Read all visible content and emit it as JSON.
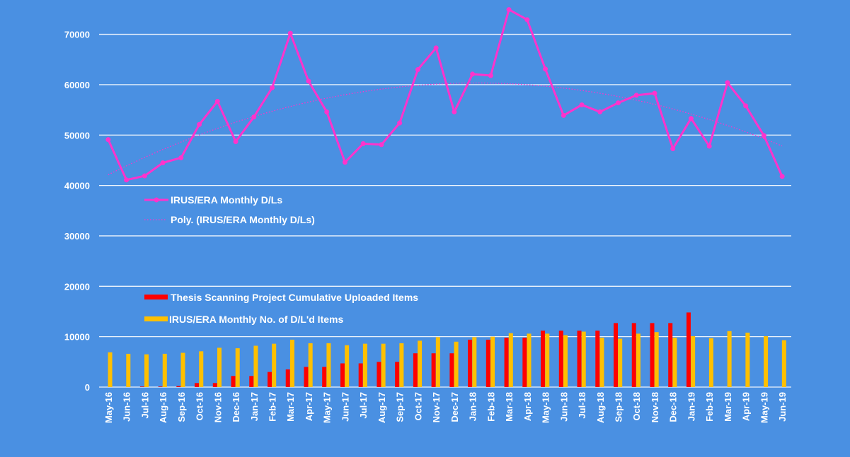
{
  "chart_data": {
    "type": "bar+line",
    "title": "",
    "xlabel": "",
    "ylabel": "",
    "ylim": [
      0,
      80000
    ],
    "yticks": [
      0,
      10000,
      20000,
      30000,
      40000,
      50000,
      60000,
      70000
    ],
    "grid": true,
    "categories": [
      "May-16",
      "Jun-16",
      "Jul-16",
      "Aug-16",
      "Sep-16",
      "Oct-16",
      "Nov-16",
      "Dec-16",
      "Jan-17",
      "Feb-17",
      "Mar-17",
      "Apr-17",
      "May-17",
      "Jun-17",
      "Jul-17",
      "Aug-17",
      "Sep-17",
      "Oct-17",
      "Nov-17",
      "Dec-17",
      "Jan-18",
      "Feb-18",
      "Mar-18",
      "Apr-18",
      "May-18",
      "Jun-18",
      "Jul-18",
      "Aug-18",
      "Sep-18",
      "Oct-18",
      "Nov-18",
      "Dec-18",
      "Jan-19",
      "Feb-19",
      "Mar-19",
      "Apr-19",
      "May-19",
      "Jun-19"
    ],
    "series": [
      {
        "name": "IRUS/ERA Monthly D/Ls",
        "type": "line",
        "color": "#ff33cc",
        "values": [
          49100,
          41100,
          41900,
          44500,
          45500,
          52100,
          56700,
          48700,
          53600,
          59400,
          70200,
          60700,
          54600,
          44600,
          48300,
          48100,
          52400,
          63000,
          67300,
          54600,
          62100,
          61800,
          74900,
          72900,
          63100,
          53900,
          56000,
          54600,
          56400,
          57900,
          58300,
          47300,
          53300,
          47800,
          60400,
          55800,
          49900,
          41800
        ]
      },
      {
        "name": "Poly. (IRUS/ERA Monthly D/Ls)",
        "type": "trendline",
        "order": 2,
        "color": "#ff33cc"
      },
      {
        "name": "Thesis Scanning Project Cumulative Uploaded Items",
        "type": "bar",
        "color": "#ff0000",
        "values": [
          0,
          0,
          100,
          100,
          200,
          800,
          800,
          2200,
          2200,
          3000,
          3500,
          4000,
          4000,
          4700,
          4700,
          5000,
          5000,
          6700,
          6700,
          6700,
          9400,
          9400,
          9800,
          9800,
          11200,
          11200,
          11200,
          11200,
          12700,
          12700,
          12700,
          12700,
          14800,
          0,
          0,
          0,
          0,
          0
        ]
      },
      {
        "name": "IRUS/ERA Monthly No. of D/L'd Items",
        "type": "bar",
        "color": "#ffc000",
        "values": [
          6900,
          6600,
          6500,
          6600,
          6800,
          7100,
          7800,
          7700,
          8200,
          8600,
          9400,
          8700,
          8700,
          8300,
          8600,
          8600,
          8700,
          9200,
          9900,
          9000,
          9900,
          10000,
          10700,
          10600,
          10600,
          10300,
          11000,
          9800,
          9600,
          10600,
          10900,
          9800,
          10100,
          9700,
          11100,
          10800,
          10100,
          9300
        ]
      }
    ],
    "legend": [
      {
        "label": "IRUS/ERA Monthly D/Ls",
        "placement": "upper-left"
      },
      {
        "label": "Poly. (IRUS/ERA Monthly D/Ls)",
        "placement": "upper-left"
      },
      {
        "label": "Thesis Scanning Project Cumulative Uploaded Items",
        "placement": "lower-left"
      },
      {
        "label": "IRUS/ERA Monthly No. of D/L'd Items",
        "placement": "lower-left"
      }
    ]
  }
}
